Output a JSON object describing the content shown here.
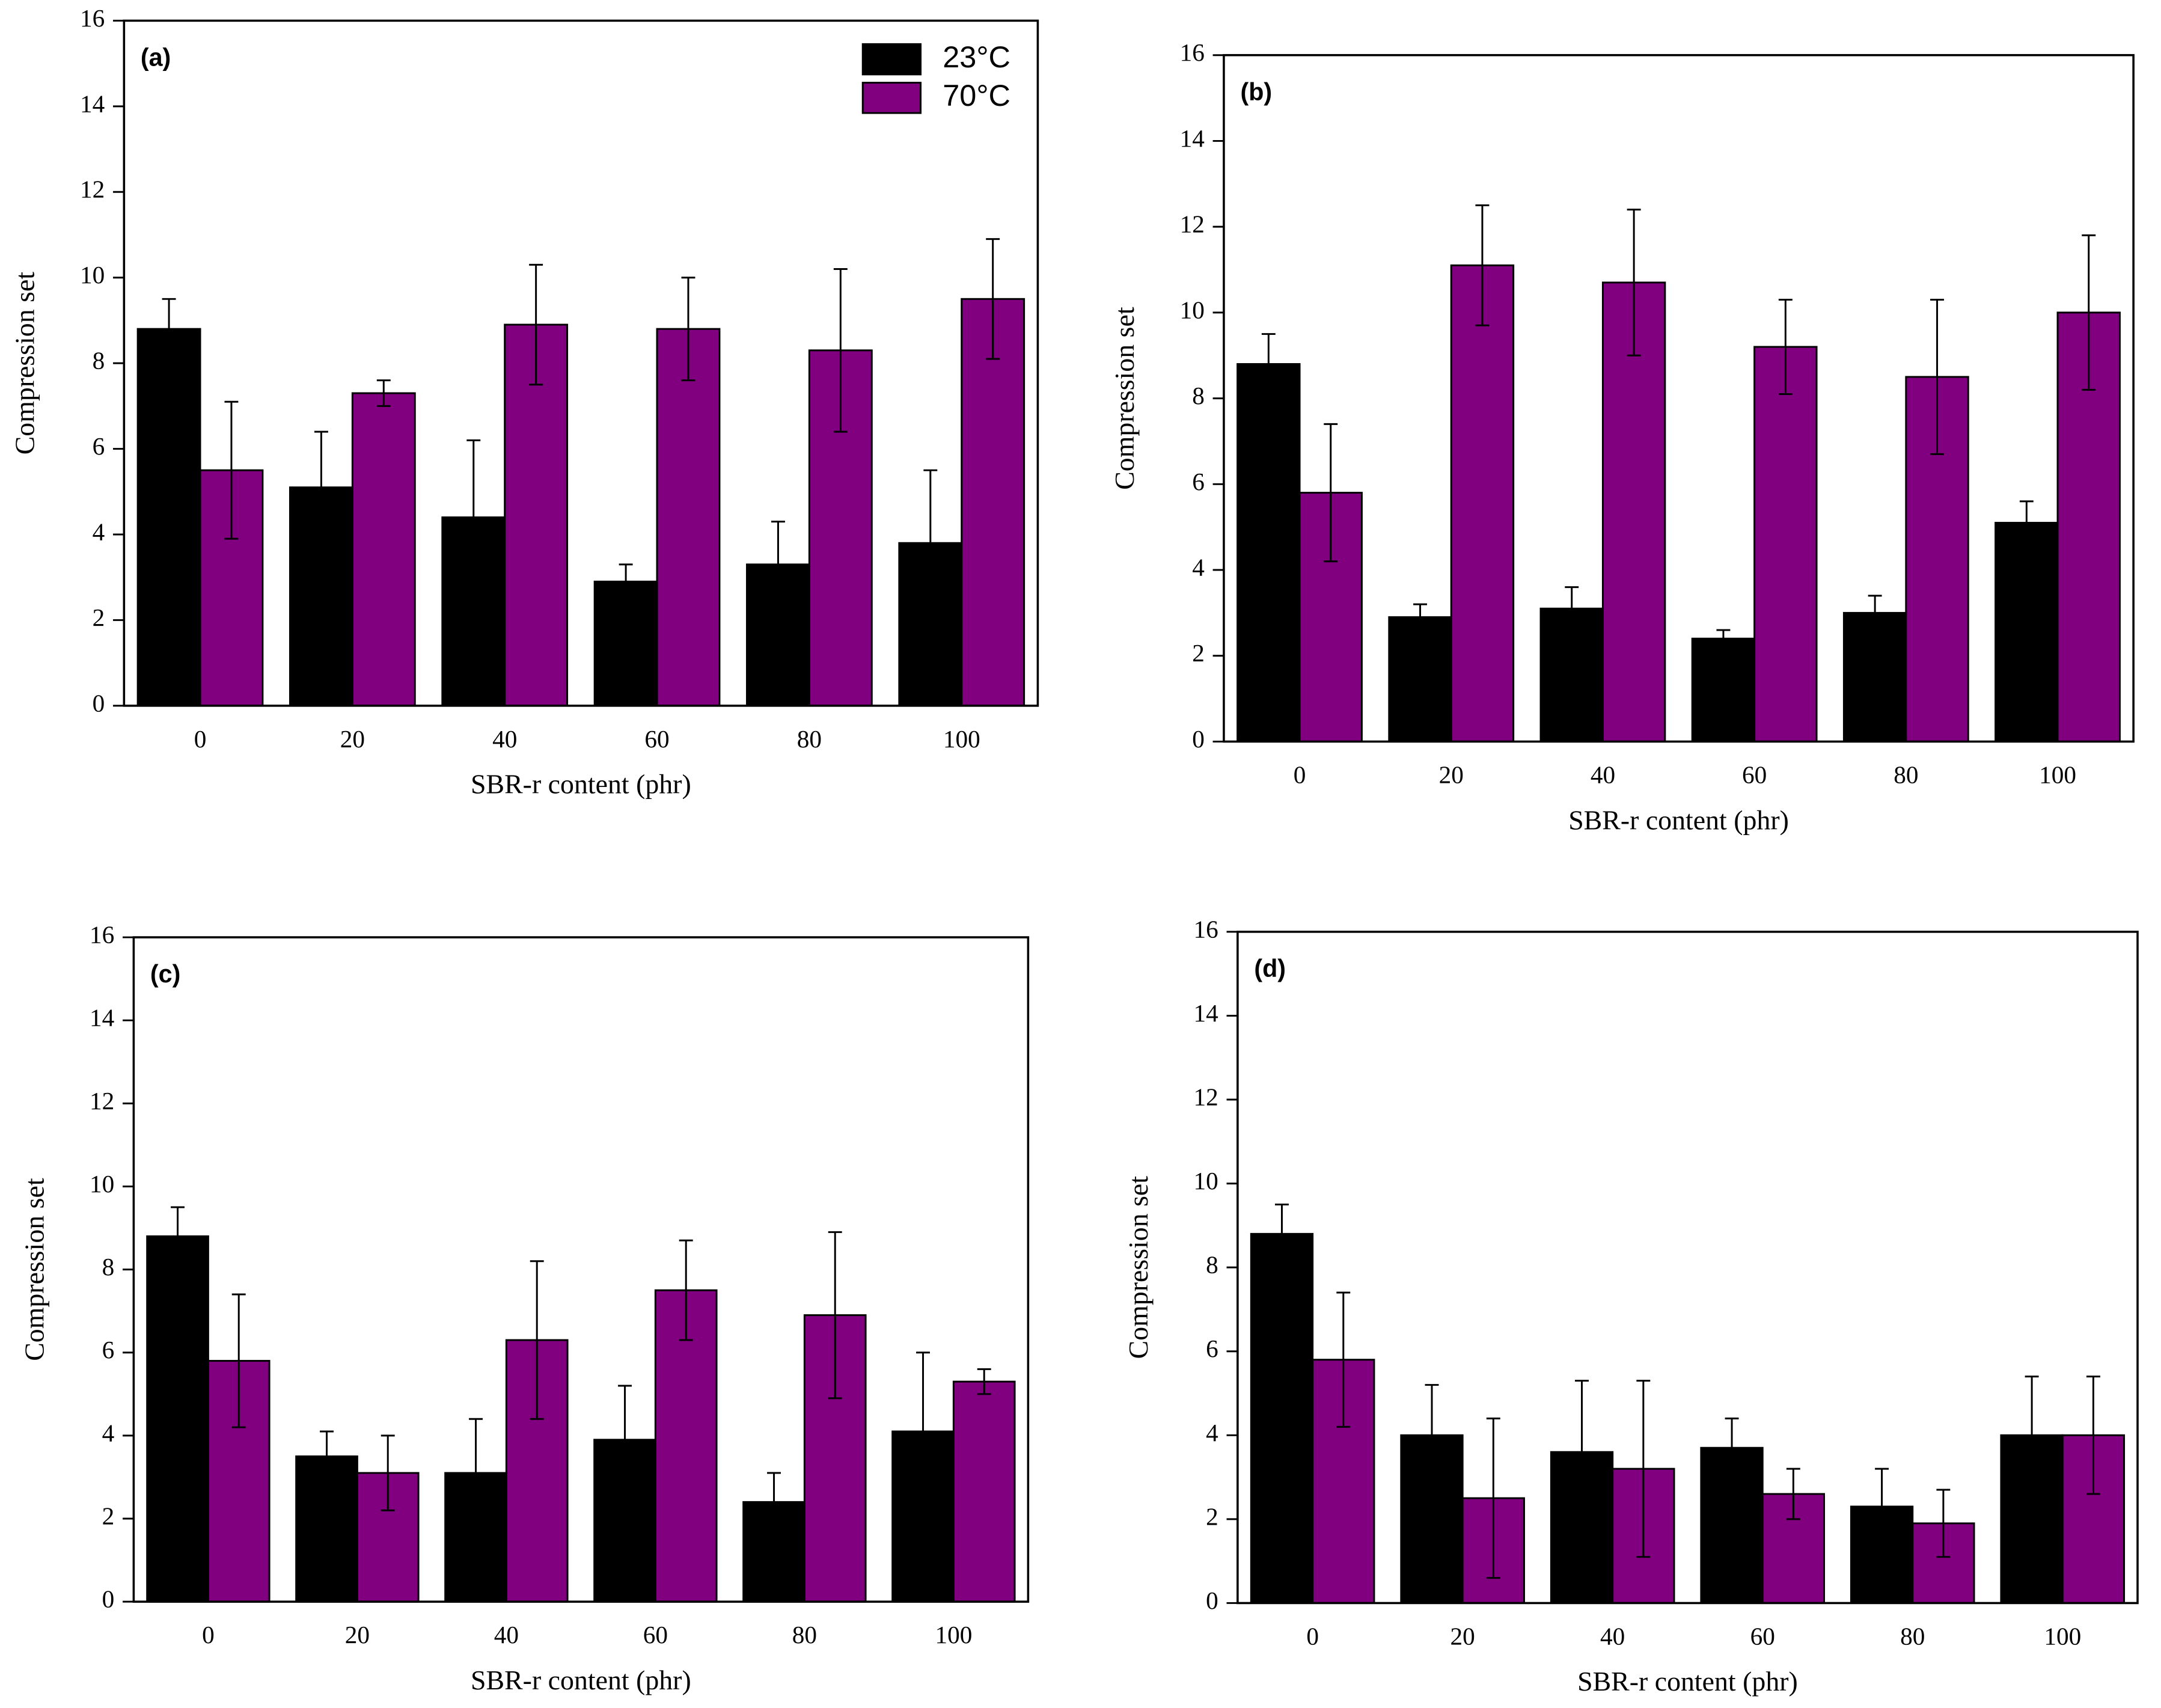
{
  "chart_data": [
    {
      "type": "bar",
      "label": "(a)",
      "xlabel": "SBR-r content (phr)",
      "ylabel": "Compression set",
      "categories": [
        "0",
        "20",
        "40",
        "60",
        "80",
        "100"
      ],
      "series": [
        {
          "name": "23°C",
          "color": "#000000",
          "values": [
            8.8,
            5.1,
            4.4,
            2.9,
            3.3,
            3.8
          ],
          "errors": [
            0.7,
            1.3,
            1.8,
            0.4,
            1.0,
            1.7
          ]
        },
        {
          "name": "70°C",
          "color": "#800080",
          "values": [
            5.5,
            7.3,
            8.9,
            8.8,
            8.3,
            9.5
          ],
          "errors": [
            1.6,
            0.3,
            1.4,
            1.2,
            1.9,
            1.4
          ]
        }
      ],
      "ylim": [
        0,
        16
      ],
      "yticks": [
        0,
        2,
        4,
        6,
        8,
        10,
        12,
        14,
        16
      ],
      "legend": "upper right"
    },
    {
      "type": "bar",
      "label": "(b)",
      "xlabel": "SBR-r content (phr)",
      "ylabel": "Compression set",
      "categories": [
        "0",
        "20",
        "40",
        "60",
        "80",
        "100"
      ],
      "series": [
        {
          "color": "#000000",
          "values": [
            8.8,
            2.9,
            3.1,
            2.4,
            3.0,
            5.1
          ],
          "errors": [
            0.7,
            0.3,
            0.5,
            0.2,
            0.4,
            0.5
          ]
        },
        {
          "color": "#800080",
          "values": [
            5.8,
            11.1,
            10.7,
            9.2,
            8.5,
            10.0
          ],
          "errors": [
            1.6,
            1.4,
            1.7,
            1.1,
            1.8,
            1.8
          ]
        }
      ],
      "ylim": [
        0,
        16
      ],
      "yticks": [
        0,
        2,
        4,
        6,
        8,
        10,
        12,
        14,
        16
      ]
    },
    {
      "type": "bar",
      "label": "(c)",
      "xlabel": "SBR-r content (phr)",
      "ylabel": "Compression set",
      "categories": [
        "0",
        "20",
        "40",
        "60",
        "80",
        "100"
      ],
      "series": [
        {
          "color": "#000000",
          "values": [
            8.8,
            3.5,
            3.1,
            3.9,
            2.4,
            4.1
          ],
          "errors": [
            0.7,
            0.6,
            1.3,
            1.3,
            0.7,
            1.9
          ]
        },
        {
          "color": "#800080",
          "values": [
            5.8,
            3.1,
            6.3,
            7.5,
            6.9,
            5.3
          ],
          "errors": [
            1.6,
            0.9,
            1.9,
            1.2,
            2.0,
            0.3
          ]
        }
      ],
      "ylim": [
        0,
        16
      ],
      "yticks": [
        0,
        2,
        4,
        6,
        8,
        10,
        12,
        14,
        16
      ]
    },
    {
      "type": "bar",
      "label": "(d)",
      "xlabel": "SBR-r content (phr)",
      "ylabel": "Compression set",
      "categories": [
        "0",
        "20",
        "40",
        "60",
        "80",
        "100"
      ],
      "series": [
        {
          "color": "#000000",
          "values": [
            8.8,
            4.0,
            3.6,
            3.7,
            2.3,
            4.0
          ],
          "errors": [
            0.7,
            1.2,
            1.7,
            0.7,
            0.9,
            1.4
          ]
        },
        {
          "color": "#800080",
          "values": [
            5.8,
            2.5,
            3.2,
            2.6,
            1.9,
            4.0
          ],
          "errors": [
            1.6,
            1.9,
            2.1,
            0.6,
            0.8,
            1.4
          ]
        }
      ],
      "ylim": [
        0,
        16
      ],
      "yticks": [
        0,
        2,
        4,
        6,
        8,
        10,
        12,
        14,
        16
      ]
    }
  ]
}
